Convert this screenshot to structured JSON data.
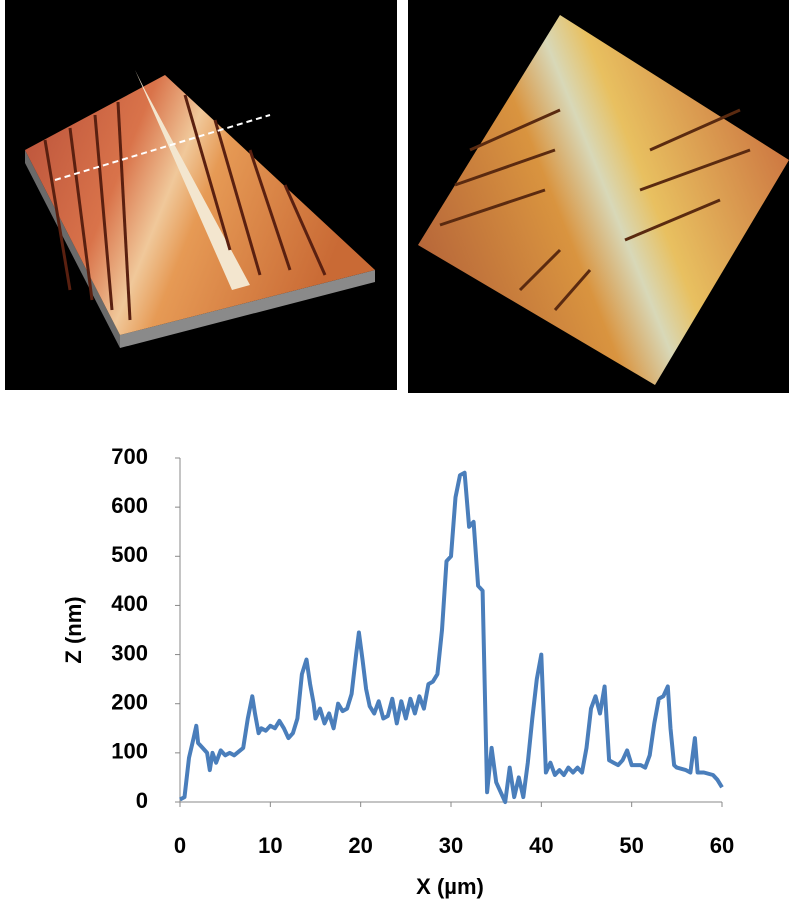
{
  "chart_data": {
    "type": "line",
    "xlabel": "X (µm)",
    "ylabel": "Z (nm)",
    "xlim": [
      0,
      60
    ],
    "xticks": [
      0,
      10,
      20,
      30,
      40,
      50,
      60
    ],
    "ylim": [
      0,
      700
    ],
    "yticks": [
      0,
      100,
      200,
      300,
      400,
      500,
      600,
      700
    ],
    "grid": false,
    "series": [
      {
        "color": "#4a7ebb",
        "x": [
          0,
          0.5,
          1,
          1.5,
          1.8,
          2,
          2.5,
          3,
          3.3,
          3.6,
          4,
          4.5,
          5,
          5.5,
          6,
          7,
          7.5,
          8,
          8.3,
          8.7,
          9,
          9.5,
          10,
          10.5,
          11,
          11.5,
          12,
          12.5,
          13,
          13.5,
          14,
          14.4,
          14.8,
          15,
          15.5,
          16,
          16.5,
          17,
          17.5,
          18,
          18.5,
          19,
          19.5,
          19.8,
          20.2,
          20.6,
          21,
          21.5,
          22,
          22.5,
          23,
          23.5,
          24,
          24.5,
          25,
          25.5,
          26,
          26.5,
          27,
          27.5,
          28,
          28.5,
          29,
          29.5,
          30,
          30.5,
          31,
          31.5,
          32,
          32.5,
          33,
          33.5,
          34,
          34.5,
          35,
          35.5,
          36,
          36.5,
          37,
          37.5,
          38,
          38.5,
          39,
          39.5,
          40,
          40.5,
          41,
          41.5,
          42,
          42.5,
          43,
          43.5,
          44,
          44.5,
          45,
          45.5,
          46,
          46.5,
          47,
          47.5,
          48,
          48.5,
          49,
          49.5,
          50,
          51,
          51.5,
          52,
          52.5,
          53,
          53.5,
          54,
          54.3,
          54.7,
          55,
          56,
          56.5,
          57,
          57.3,
          58,
          59,
          59.5,
          60
        ],
        "values": [
          5,
          10,
          90,
          130,
          155,
          120,
          110,
          100,
          65,
          100,
          80,
          105,
          95,
          100,
          95,
          110,
          170,
          215,
          180,
          140,
          150,
          145,
          155,
          150,
          165,
          150,
          130,
          140,
          170,
          260,
          290,
          240,
          200,
          170,
          190,
          160,
          180,
          150,
          200,
          185,
          190,
          220,
          300,
          345,
          290,
          230,
          195,
          180,
          205,
          170,
          175,
          210,
          160,
          205,
          170,
          210,
          180,
          215,
          190,
          240,
          245,
          260,
          350,
          490,
          500,
          620,
          665,
          670,
          560,
          570,
          440,
          430,
          20,
          110,
          40,
          20,
          0,
          70,
          10,
          50,
          10,
          80,
          170,
          250,
          300,
          60,
          80,
          55,
          65,
          55,
          70,
          60,
          70,
          60,
          110,
          190,
          215,
          180,
          235,
          85,
          80,
          75,
          85,
          105,
          75,
          75,
          70,
          95,
          160,
          210,
          215,
          235,
          150,
          75,
          70,
          65,
          60,
          130,
          60,
          60,
          55,
          45,
          30
        ]
      }
    ]
  }
}
